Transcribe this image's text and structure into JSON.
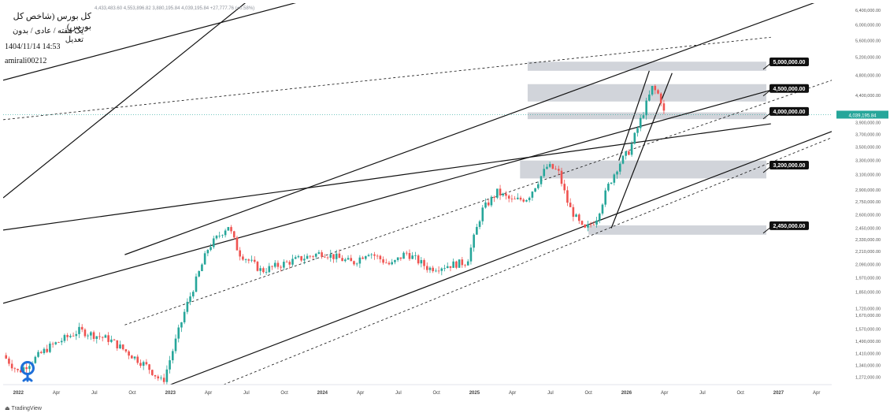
{
  "header": {
    "title": "کل بورس (شاخص کل بورس)",
    "interval": "یک هفته / عادی / بدون تعدیل",
    "datetime": "1404/11/14 14:53",
    "username": "amirali00212",
    "ohlc": "4,433,483.60  4,553,896.82  3,880,195.84  4,039,195.84  +27,777.76 (+0.58%)"
  },
  "brand": "TradingView",
  "colors": {
    "up": "#26a69a",
    "down": "#ef5350",
    "zone": "#c9ccd3",
    "line": "#111111",
    "price_tag": "#26a69a"
  },
  "chart_data": {
    "type": "candlestick",
    "title": "کل بورس (شاخص کل بورس)",
    "yscale": "log",
    "ylim": [
      1230000,
      6600000
    ],
    "y_ticks": [
      "6,400,000.00",
      "6,000,000.00",
      "5,600,000.00",
      "5,200,000.00",
      "4,800,000.00",
      "4,400,000.00",
      "4,039,195.84",
      "3,900,000.00",
      "3,700,000.00",
      "3,500,000.00",
      "3,300,000.00",
      "3,100,000.00",
      "2,900,000.00",
      "2,750,000.00",
      "2,600,000.00",
      "2,450,000.00",
      "2,330,000.00",
      "2,210,000.00",
      "2,090,000.00",
      "1,970,000.00",
      "1,850,000.00",
      "1,720,000.00",
      "1,670,000.00",
      "1,570,000.00",
      "1,490,000.00",
      "1,410,000.00",
      "1,340,000.00",
      "1,272,000.00"
    ],
    "y_tick_values": [
      6400000,
      6000000,
      5600000,
      5200000,
      4800000,
      4400000,
      4039196,
      3900000,
      3700000,
      3500000,
      3300000,
      3100000,
      2900000,
      2750000,
      2600000,
      2450000,
      2330000,
      2210000,
      2090000,
      1970000,
      1850000,
      1720000,
      1670000,
      1570000,
      1490000,
      1410000,
      1340000,
      1272000
    ],
    "x_ticks": [
      "2022",
      "Apr",
      "Jul",
      "Oct",
      "2023",
      "Apr",
      "Jul",
      "Oct",
      "2024",
      "Apr",
      "Jul",
      "Oct",
      "2025",
      "Apr",
      "Jul",
      "Oct",
      "2026",
      "Apr",
      "Jul",
      "Oct",
      "2027",
      "Apr"
    ],
    "x_tick_dates": [
      2022.0,
      2022.25,
      2022.5,
      2022.75,
      2023.0,
      2023.25,
      2023.5,
      2023.75,
      2024.0,
      2024.25,
      2024.5,
      2024.75,
      2025.0,
      2025.25,
      2025.5,
      2025.75,
      2026.0,
      2026.25,
      2026.5,
      2026.75,
      2027.0,
      2027.25
    ],
    "xlim": [
      2021.9,
      2027.35
    ],
    "last_price": "4,039,195.84",
    "last_price_value": 4039196,
    "key_points": [
      {
        "date": 2021.9,
        "close": 1400000
      },
      {
        "date": 2022.0,
        "close": 1300000
      },
      {
        "date": 2022.2,
        "close": 1450000
      },
      {
        "date": 2022.4,
        "close": 1560000
      },
      {
        "date": 2022.6,
        "close": 1500000
      },
      {
        "date": 2022.85,
        "close": 1330000
      },
      {
        "date": 2022.95,
        "close": 1240000
      },
      {
        "date": 2023.1,
        "close": 1720000
      },
      {
        "date": 2023.25,
        "close": 2250000
      },
      {
        "date": 2023.38,
        "close": 2480000
      },
      {
        "date": 2023.45,
        "close": 2200000
      },
      {
        "date": 2023.6,
        "close": 2030000
      },
      {
        "date": 2023.8,
        "close": 2120000
      },
      {
        "date": 2024.0,
        "close": 2200000
      },
      {
        "date": 2024.2,
        "close": 2100000
      },
      {
        "date": 2024.3,
        "close": 2210000
      },
      {
        "date": 2024.45,
        "close": 2080000
      },
      {
        "date": 2024.55,
        "close": 2200000
      },
      {
        "date": 2024.7,
        "close": 2050000
      },
      {
        "date": 2024.95,
        "close": 2110000
      },
      {
        "date": 2025.05,
        "close": 2650000
      },
      {
        "date": 2025.15,
        "close": 2870000
      },
      {
        "date": 2025.25,
        "close": 2760000
      },
      {
        "date": 2025.35,
        "close": 2800000
      },
      {
        "date": 2025.48,
        "close": 3220000
      },
      {
        "date": 2025.55,
        "close": 3150000
      },
      {
        "date": 2025.62,
        "close": 2700000
      },
      {
        "date": 2025.72,
        "close": 2420000
      },
      {
        "date": 2025.8,
        "close": 2550000
      },
      {
        "date": 2025.88,
        "close": 2950000
      },
      {
        "date": 2025.95,
        "close": 3250000
      },
      {
        "date": 2026.02,
        "close": 3450000
      },
      {
        "date": 2026.1,
        "close": 4000000
      },
      {
        "date": 2026.17,
        "close": 4550000
      },
      {
        "date": 2026.22,
        "close": 4380000
      },
      {
        "date": 2026.25,
        "close": 4039196
      }
    ],
    "zones": [
      {
        "label": "5,000,000.00",
        "y1": 4900000,
        "y2": 5100000,
        "x1": 2025.35
      },
      {
        "label": "4,500,000.00",
        "y1": 4280000,
        "y2": 4620000,
        "x1": 2025.35
      },
      {
        "label": "4,000,000.00",
        "y1": 3960000,
        "y2": 4080000,
        "x1": 2025.35
      },
      {
        "label": "3,200,000.00",
        "y1": 3050000,
        "y2": 3300000,
        "x1": 2025.3
      },
      {
        "label": "2,450,000.00",
        "y1": 2380000,
        "y2": 2480000,
        "x1": 2025.75
      }
    ],
    "zones_x2": 2026.92,
    "trendlines": [
      {
        "style": "solid",
        "x1": 2021.9,
        "y1": 1760000,
        "x2": 2026.95,
        "y2": 4500000
      },
      {
        "style": "solid",
        "x1": 2023.0,
        "y1": 1230000,
        "x2": 2027.35,
        "y2": 3750000
      },
      {
        "style": "dashed",
        "x1": 2023.35,
        "y1": 1230000,
        "x2": 2027.35,
        "y2": 3650000
      },
      {
        "style": "dashed",
        "x1": 2022.7,
        "y1": 1600000,
        "x2": 2027.35,
        "y2": 4700000
      },
      {
        "style": "dashed",
        "x1": 2021.9,
        "y1": 3950000,
        "x2": 2026.95,
        "y2": 5680000
      },
      {
        "style": "solid",
        "x1": 2022.7,
        "y1": 2180000,
        "x2": 2027.35,
        "y2": 6800000
      },
      {
        "style": "solid",
        "x1": 2021.9,
        "y1": 2800000,
        "x2": 2023.6,
        "y2": 7000000
      },
      {
        "style": "solid",
        "x1": 2021.9,
        "y1": 4700000,
        "x2": 2023.9,
        "y2": 6700000
      },
      {
        "style": "solid",
        "x1": 2021.9,
        "y1": 2430000,
        "x2": 2026.95,
        "y2": 3880000
      },
      {
        "style": "solid",
        "x1": 2025.9,
        "y1": 2450000,
        "x2": 2026.3,
        "y2": 4850000
      },
      {
        "style": "solid",
        "x1": 2025.95,
        "y1": 3300000,
        "x2": 2026.15,
        "y2": 4900000
      }
    ]
  }
}
